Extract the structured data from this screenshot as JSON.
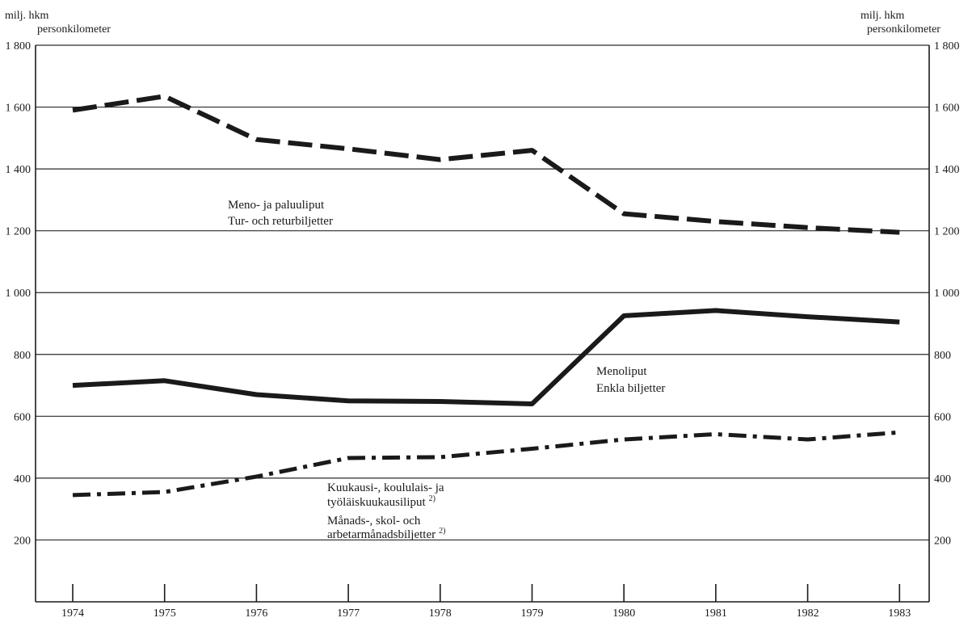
{
  "chart_data": {
    "type": "line",
    "y_unit_left": [
      "milj. hkm",
      "personkilometer"
    ],
    "y_unit_right": [
      "milj. hkm",
      "personkilometer"
    ],
    "x": [
      1974,
      1975,
      1976,
      1977,
      1978,
      1979,
      1980,
      1981,
      1982,
      1983
    ],
    "x_tick_labels": [
      "1974",
      "1975",
      "1976",
      "1977",
      "1978",
      "1979",
      "1980",
      "1981",
      "1982",
      "1983"
    ],
    "ylim": [
      0,
      1800
    ],
    "y_ticks": [
      200,
      400,
      600,
      800,
      1000,
      1200,
      1400,
      1600,
      1800
    ],
    "y_tick_labels": [
      "200",
      "400",
      "600",
      "800",
      "1 000",
      "1 200",
      "1 400",
      "1 600",
      "1 800"
    ],
    "grid": true,
    "series": [
      {
        "key": "return",
        "style": "dashed",
        "values": [
          1590,
          1635,
          1495,
          1465,
          1430,
          1460,
          1255,
          1230,
          1210,
          1195
        ],
        "annotation": [
          "Meno- ja paluuliput",
          "Tur- och returbiljetter"
        ]
      },
      {
        "key": "single",
        "style": "solid",
        "values": [
          700,
          715,
          670,
          650,
          648,
          640,
          925,
          942,
          922,
          905
        ],
        "annotation": [
          "Menoliput",
          "Enkla biljetter"
        ]
      },
      {
        "key": "monthly",
        "style": "dash-dot",
        "values": [
          345,
          355,
          405,
          465,
          468,
          495,
          525,
          542,
          525,
          548
        ],
        "annotation": [
          "Kuukausi-, koululais- ja",
          "työläiskuukausiliput",
          "Månads-, skol- och",
          "arbetarmånadsbiljetter"
        ],
        "footnote_mark": "2)"
      }
    ]
  }
}
